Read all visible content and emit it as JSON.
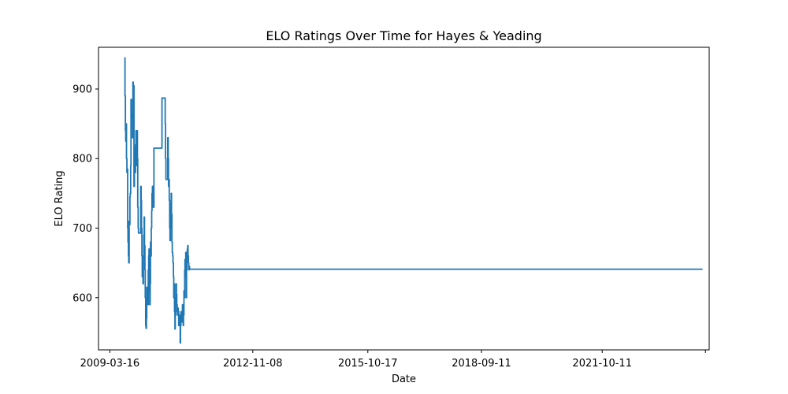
{
  "chart_data": {
    "type": "line",
    "title": "ELO Ratings Over Time for Hayes & Yeading",
    "xlabel": "Date",
    "ylabel": "ELO Rating",
    "xlim": [
      "2008-11-30",
      "2024-07-05"
    ],
    "ylim": [
      525,
      960
    ],
    "x_ticks": [
      {
        "date": "2009-03-16",
        "label": "2009-03-16"
      },
      {
        "date": "2012-11-08",
        "label": "2012-11-08"
      },
      {
        "date": "2015-10-17",
        "label": "2015-10-17"
      },
      {
        "date": "2018-09-11",
        "label": "2018-09-11"
      },
      {
        "date": "2021-10-11",
        "label": "2021-10-11"
      },
      {
        "date": "2024-05-31",
        "label": ""
      }
    ],
    "y_ticks": [
      600,
      700,
      800,
      900
    ],
    "grid": false,
    "legend": "none",
    "colors": {
      "series": "#1f77b4",
      "axes": "#000000",
      "background": "#ffffff"
    },
    "series": [
      {
        "x": [
          "2009-08-01",
          "2009-08-04",
          "2009-08-08",
          "2009-08-11",
          "2009-08-15",
          "2009-08-18",
          "2009-08-22",
          "2009-08-25",
          "2009-08-29",
          "2009-09-01",
          "2009-09-05",
          "2009-09-08",
          "2009-09-12",
          "2009-09-15",
          "2009-09-19",
          "2009-09-22",
          "2009-09-26",
          "2009-09-29",
          "2009-10-03",
          "2009-10-06",
          "2009-10-10",
          "2009-10-13",
          "2009-10-17",
          "2009-10-20",
          "2009-10-24",
          "2009-10-27",
          "2009-10-31",
          "2009-11-03",
          "2009-11-07",
          "2009-11-10",
          "2009-11-14",
          "2009-11-17",
          "2009-11-21",
          "2009-11-24",
          "2009-11-28",
          "2009-12-01",
          "2009-12-05",
          "2009-12-08",
          "2009-12-12",
          "2009-12-15",
          "2009-12-19",
          "2009-12-26",
          "2009-12-29",
          "2010-01-02",
          "2010-01-05",
          "2010-01-09",
          "2010-01-12",
          "2010-01-16",
          "2010-01-19",
          "2010-01-23",
          "2010-01-26",
          "2010-01-30",
          "2010-02-02",
          "2010-02-06",
          "2010-02-09",
          "2010-02-13",
          "2010-02-16",
          "2010-02-20",
          "2010-02-23",
          "2010-02-27",
          "2010-03-02",
          "2010-03-06",
          "2010-03-09",
          "2010-03-13",
          "2010-03-16",
          "2010-03-20",
          "2010-03-23",
          "2010-03-27",
          "2010-03-30",
          "2010-04-03",
          "2010-04-06",
          "2010-04-10",
          "2010-04-13",
          "2010-04-17",
          "2010-04-24",
          "2010-05-01",
          "2010-07-15",
          "2010-08-14",
          "2010-08-17",
          "2010-08-21",
          "2010-08-24",
          "2010-08-28",
          "2010-08-31",
          "2010-09-04",
          "2010-09-07",
          "2010-09-11",
          "2010-09-14",
          "2010-09-18",
          "2010-09-21",
          "2010-09-25",
          "2010-09-28",
          "2010-10-02",
          "2010-10-05",
          "2010-10-09",
          "2010-10-12",
          "2010-10-16",
          "2010-10-19",
          "2010-10-23",
          "2010-10-26",
          "2010-10-30",
          "2010-11-02",
          "2010-11-06",
          "2010-11-09",
          "2010-11-13",
          "2010-11-16",
          "2010-11-20",
          "2010-11-23",
          "2010-11-27",
          "2010-11-30",
          "2010-12-04",
          "2010-12-07",
          "2010-12-11",
          "2010-12-14",
          "2010-12-18",
          "2010-12-28",
          "2011-01-01",
          "2011-01-04",
          "2011-01-08",
          "2011-01-11",
          "2011-01-15",
          "2011-01-18",
          "2011-01-22",
          "2011-01-25",
          "2011-01-29",
          "2011-02-01",
          "2011-02-05",
          "2011-02-08",
          "2011-02-12",
          "2011-02-15",
          "2011-02-19",
          "2011-02-22",
          "2011-02-26",
          "2011-03-01",
          "2011-03-05",
          "2011-03-08",
          "2011-03-12",
          "2011-03-15",
          "2011-03-19",
          "2011-03-22",
          "2011-03-26",
          "2011-03-29",
          "2011-04-02",
          "2011-04-05",
          "2011-04-09",
          "2011-04-12",
          "2011-04-16",
          "2011-04-23",
          "2011-04-30",
          "2011-07-10",
          "2011-08-13",
          "2011-08-16",
          "2011-08-20",
          "2011-08-23",
          "2011-08-27",
          "2011-08-30",
          "2011-09-03",
          "2011-09-06",
          "2011-09-10",
          "2011-09-13",
          "2011-09-17",
          "2011-09-20",
          "2011-09-24",
          "2011-09-27",
          "2011-10-01",
          "2011-10-04",
          "2011-10-08",
          "2011-10-11",
          "2011-10-15",
          "2011-10-18",
          "2011-10-22",
          "2011-10-25",
          "2011-10-29",
          "2011-11-01",
          "2011-11-05",
          "2011-11-08",
          "2011-11-12",
          "2011-11-15",
          "2011-11-19",
          "2011-11-22",
          "2011-11-26",
          "2011-11-29",
          "2011-12-03",
          "2011-12-06",
          "2011-12-10",
          "2011-12-13",
          "2011-12-17",
          "2011-12-26",
          "2011-12-31",
          "2012-01-03",
          "2012-01-07",
          "2012-01-10",
          "2012-01-14",
          "2012-01-17",
          "2012-01-21",
          "2012-01-24",
          "2012-01-28",
          "2012-01-31",
          "2012-02-04",
          "2012-02-07",
          "2012-02-11",
          "2012-02-14",
          "2012-02-18",
          "2012-02-21",
          "2012-02-25",
          "2012-02-28",
          "2012-03-03",
          "2012-03-06",
          "2012-03-10",
          "2012-03-13",
          "2012-03-17",
          "2012-03-20",
          "2012-03-24",
          "2012-03-27",
          "2012-03-31",
          "2012-04-03",
          "2012-04-07",
          "2012-04-14",
          "2012-04-21",
          "2012-04-28",
          "2024-05-04"
        ],
        "y": [
          945,
          890,
          840,
          825,
          850,
          800,
          780,
          785,
          700,
          680,
          660,
          650,
          710,
          705,
          745,
          750,
          790,
          885,
          865,
          860,
          862,
          830,
          910,
          880,
          905,
          760,
          790,
          815,
          780,
          820,
          840,
          790,
          800,
          840,
          800,
          730,
          700,
          693,
          693,
          693,
          693,
          693,
          760,
          740,
          700,
          660,
          630,
          650,
          620,
          660,
          690,
          716,
          675,
          640,
          600,
          560,
          556,
          570,
          615,
          610,
          600,
          590,
          640,
          660,
          670,
          610,
          590,
          620,
          680,
          660,
          700,
          725,
          750,
          760,
          730,
          815,
          887,
          850,
          800,
          770,
          770,
          770,
          770,
          770,
          830,
          800,
          760,
          770,
          740,
          700,
          682,
          736,
          700,
          750,
          720,
          680,
          665,
          660,
          650,
          630,
          600,
          620,
          580,
          555,
          575,
          600,
          620,
          605,
          590,
          580,
          575,
          585,
          580,
          560,
          575,
          535,
          560,
          580,
          575,
          565,
          572,
          590,
          570,
          560,
          575,
          610,
          600,
          640,
          655,
          630,
          665,
          600,
          640,
          660,
          670,
          675,
          660,
          650,
          640,
          645,
          641,
          641,
          641,
          641,
          641,
          641,
          641,
          641,
          641,
          641,
          641,
          641,
          641,
          641,
          641,
          641,
          641,
          641,
          641,
          641,
          641,
          641,
          641,
          641,
          641,
          641,
          641,
          641,
          641,
          641,
          641,
          641,
          641,
          641,
          641,
          641,
          641,
          641,
          641,
          641,
          641,
          641,
          641,
          641,
          641,
          641,
          641,
          641,
          641,
          641,
          641,
          641,
          641,
          641,
          641,
          641,
          641,
          641,
          641,
          641,
          641,
          641,
          641,
          641,
          641,
          641,
          641,
          641,
          641,
          641,
          641,
          641,
          641,
          641,
          641,
          641,
          641,
          641,
          641,
          641
        ]
      }
    ]
  }
}
